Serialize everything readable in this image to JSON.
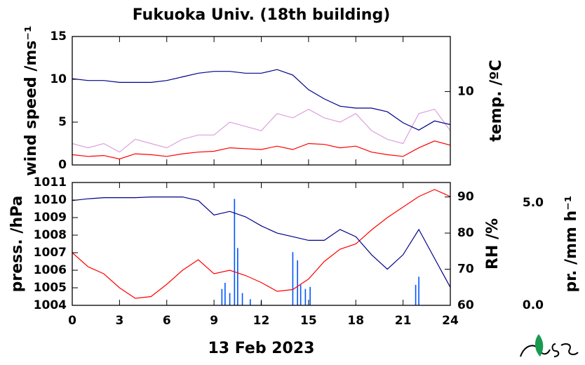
{
  "chart_data": [
    {
      "type": "line",
      "title": "Fukuoka Univ. (18th building)",
      "ylabel": "wind speed /ms⁻¹",
      "ylabel_color": "#ff0000",
      "y2label": "temp. /ºC",
      "y2label_color": "#00008b",
      "xlim": [
        0,
        24
      ],
      "xticks": [
        0,
        3,
        6,
        9,
        12,
        15,
        18,
        21,
        24
      ],
      "xticklabels": false,
      "ylim": [
        0,
        15
      ],
      "yticks": [
        0,
        5,
        10,
        15
      ],
      "y2lim": [
        6,
        13
      ],
      "y2ticks": [
        10
      ],
      "x": [
        0,
        1,
        2,
        3,
        4,
        5,
        6,
        7,
        8,
        9,
        10,
        11,
        12,
        13,
        14,
        15,
        16,
        17,
        18,
        19,
        20,
        21,
        22,
        23,
        24
      ],
      "series": [
        {
          "color": "#dda0dd",
          "axis": "y",
          "values": [
            2.5,
            2.0,
            2.5,
            1.5,
            3.0,
            2.5,
            2.0,
            3.0,
            3.5,
            3.5,
            5.0,
            4.5,
            4.0,
            6.0,
            5.5,
            6.5,
            5.5,
            5.0,
            6.0,
            4.0,
            3.0,
            2.5,
            6.0,
            6.5,
            4.0
          ]
        },
        {
          "color": "#ff0000",
          "axis": "y",
          "values": [
            1.2,
            1.0,
            1.1,
            0.7,
            1.3,
            1.2,
            1.0,
            1.3,
            1.5,
            1.6,
            2.0,
            1.9,
            1.8,
            2.2,
            1.8,
            2.5,
            2.4,
            2.0,
            2.2,
            1.5,
            1.2,
            1.0,
            2.0,
            2.8,
            2.3
          ]
        },
        {
          "color": "#00008b",
          "axis": "y2",
          "values": [
            10.7,
            10.6,
            10.6,
            10.5,
            10.5,
            10.5,
            10.6,
            10.8,
            11.0,
            11.1,
            11.1,
            11.0,
            11.0,
            11.2,
            10.9,
            10.1,
            9.6,
            9.2,
            9.1,
            9.1,
            8.9,
            8.3,
            7.9,
            8.4,
            8.2
          ]
        }
      ]
    },
    {
      "type": "line",
      "xlabel": "13 Feb 2023",
      "ylabel": "press. /hPa",
      "ylabel_color": "#ff0000",
      "y2label": "RH /%",
      "y2label_color": "#00008b",
      "y3label": "pr. /mm h⁻¹",
      "y3label_color": "#1e6eff",
      "xlim": [
        0,
        24
      ],
      "xticks": [
        0,
        3,
        6,
        9,
        12,
        15,
        18,
        21,
        24
      ],
      "xticklabels": true,
      "ylim": [
        1004,
        1011
      ],
      "yticks": [
        1004,
        1005,
        1006,
        1007,
        1008,
        1009,
        1010,
        1011
      ],
      "y2lim": [
        60,
        94
      ],
      "y2ticks": [
        60,
        70,
        80,
        90
      ],
      "y3lim": [
        0,
        6
      ],
      "y3ticks": [
        {
          "value": 0,
          "label": "0.0"
        },
        {
          "value": 5,
          "label": "5.0"
        }
      ],
      "x": [
        0,
        1,
        2,
        3,
        4,
        5,
        6,
        7,
        8,
        9,
        10,
        11,
        12,
        13,
        14,
        15,
        16,
        17,
        18,
        19,
        20,
        21,
        22,
        23,
        24
      ],
      "series": [
        {
          "type": "bar",
          "color": "#0055ff",
          "axis": "y3",
          "x": [
            9.5,
            9.7,
            10.0,
            10.3,
            10.5,
            10.8,
            11.3,
            12.0,
            14.0,
            14.3,
            14.5,
            14.8,
            15.1,
            21.8,
            22.0
          ],
          "values": [
            0.8,
            1.1,
            0.6,
            5.2,
            2.8,
            0.6,
            0.3,
            0.2,
            2.6,
            2.2,
            1.0,
            0.8,
            0.9,
            1.0,
            1.4
          ]
        },
        {
          "color": "#ff0000",
          "axis": "y",
          "values": [
            1007.0,
            1006.2,
            1005.8,
            1005.0,
            1004.4,
            1004.5,
            1005.2,
            1006.0,
            1006.6,
            1005.8,
            1006.0,
            1005.7,
            1005.3,
            1004.8,
            1004.9,
            1005.5,
            1006.5,
            1007.2,
            1007.5,
            1008.3,
            1009.0,
            1009.6,
            1010.2,
            1010.6,
            1010.2
          ]
        },
        {
          "color": "#00008b",
          "axis": "y2",
          "values": [
            89,
            89.5,
            89.8,
            89.8,
            89.8,
            90,
            90,
            90,
            89,
            85,
            86,
            84.5,
            82,
            80,
            79,
            78,
            78,
            81,
            79,
            74,
            70,
            74,
            81,
            73,
            65
          ]
        }
      ]
    }
  ]
}
